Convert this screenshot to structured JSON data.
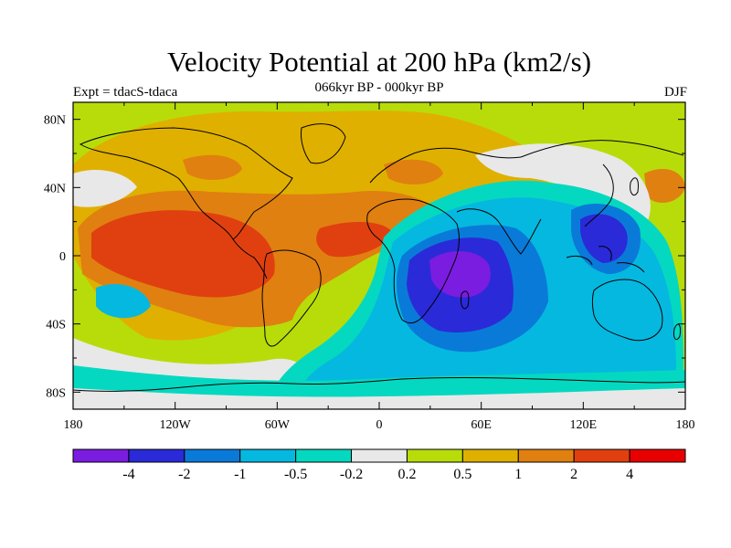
{
  "header": {
    "title": "Velocity Potential at 200 hPa (km2/s)",
    "subtitle": "066kyr BP - 000kyr BP",
    "left_label": "Expt = tdacS-tdaca",
    "right_label": "DJF"
  },
  "map": {
    "projection": "cylindrical-equidistant",
    "lon_range": [
      -180,
      180
    ],
    "lat_range": [
      -90,
      90
    ],
    "lon_ticks": [
      {
        "lon": -180,
        "label": "180"
      },
      {
        "lon": -120,
        "label": "120W"
      },
      {
        "lon": -60,
        "label": "60W"
      },
      {
        "lon": 0,
        "label": "0"
      },
      {
        "lon": 60,
        "label": "60E"
      },
      {
        "lon": 120,
        "label": "120E"
      },
      {
        "lon": 180,
        "label": "180"
      }
    ],
    "lat_ticks": [
      {
        "lat": 80,
        "label": "80N"
      },
      {
        "lat": 40,
        "label": "40N"
      },
      {
        "lat": 0,
        "label": "0"
      },
      {
        "lat": -40,
        "label": "40S"
      },
      {
        "lat": -80,
        "label": "80S"
      }
    ]
  },
  "colorbar": {
    "colors": [
      "#7a1de0",
      "#2a2ad8",
      "#0a7ad8",
      "#05b8e0",
      "#05d8c0",
      "#e8e8e8",
      "#b8dc0a",
      "#e0b000",
      "#e08010",
      "#e04010",
      "#e80000"
    ],
    "labels": [
      "-4",
      "-2",
      "-1",
      "-0.5",
      "-0.2",
      "0.2",
      "0.5",
      "1",
      "2",
      "4"
    ]
  }
}
